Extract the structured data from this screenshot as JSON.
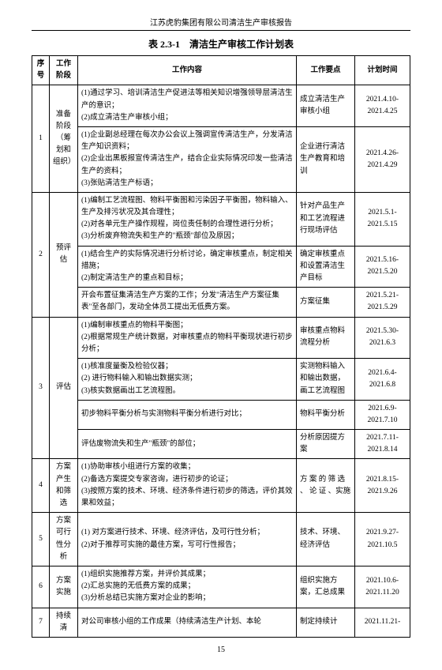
{
  "doc_header": "江苏虎豹集团有限公司清洁生产审核报告",
  "table_title": "表 2.3-1　清洁生产审核工作计划表",
  "page_number": "15",
  "columns": {
    "seq": "序号",
    "phase": "工作阶段",
    "content": "工作内容",
    "points": "工作要点",
    "time": "计划时间"
  },
  "rows": [
    {
      "seq": "1",
      "phase": "准备阶段（筹划和组织）",
      "groups": [
        {
          "content": "(1)通过学习、培训清洁生产促进法等相关知识增强领导层清洁生产的意识；\n(2)成立清洁生产审核小组；",
          "points": "成立清洁生产审核小组",
          "time": "2021.4.10-2021.4.25"
        },
        {
          "content": "(1)企业副总经理在每次办公会议上强调宣传清洁生产，分发清洁生产知识资料；\n(2)企业出黑板报宣传清洁生产，结合企业实际情况印发一些清洁生产的资料；\n(3)张贴清洁生产标语；",
          "points": "企业进行清洁生产教育和培训",
          "time": "2021.4.26-2021.4.29"
        }
      ]
    },
    {
      "seq": "2",
      "phase": "预评估",
      "groups": [
        {
          "content": "(1)编制工艺流程图、物料平衡图和污染因子平衡图，物料输入、生产及排污状况及其合理性；\n(2)对各单元生产操作规程，岗位责任制的合理性进行分析；\n(3)分析废弃物流失和生产的\"瓶颈\"部位及原因；",
          "points": "针对产品生产和工艺流程进行现场评估",
          "time": "2021.5.1-2021.5.15"
        },
        {
          "content": "(1)结合生产的实际情况进行分析讨论，确定审核重点，制定相关措施；\n(2)制定清洁生产的重点和目标；",
          "points": "确定审核重点和设置清洁生产目标",
          "time": "2021.5.16-2021.5.20"
        },
        {
          "content": "开会布置征集清洁生产方案的工作；分发\"清洁生产方案征集表\"至各部门，发动全体员工提出无低费方案。",
          "points": "方案征集",
          "time": "2021.5.21-2021.5.29"
        }
      ]
    },
    {
      "seq": "3",
      "phase": "评估",
      "groups": [
        {
          "content": "(1)编制审核重点的物料平衡图；\n(2)根据常规生产统计数据，对审核重点的物料平衡现状进行初步分析；",
          "points": "审核重点物料流程分析",
          "time": "2021.5.30-2021.6.3"
        },
        {
          "content": "(1)核准度量衡及检验仪器；\n(2) 进行物料输入和输出数据实测；\n(3)核实数据画出工艺流程图。",
          "points": "实测物料输入和输出数据，画工艺流程图",
          "time": "2021.6.4-2021.6.8"
        },
        {
          "content": "初步物料平衡分析与实测物料平衡分析进行对比；",
          "points": "物料平衡分析",
          "time": "2021.6.9-2021.7.10"
        },
        {
          "content": "评估废物流失和生产\"瓶颈\"的部位；",
          "points": "分析原因提方案",
          "time": "2021.7.11-2021.8.14"
        }
      ]
    },
    {
      "seq": "4",
      "phase": "方案产生和筛选",
      "groups": [
        {
          "content": "(1)协助审核小组进行方案的收集；\n(2)备选方案提交专家咨询，进行初步的论证；\n(3)按照方案的技术、环境、经济条件进行初步的筛选，评价其效果和效益；",
          "points": "方 案 的 筛 选 、 论 证 、实施",
          "time": "2021.8.15-2021.9.26"
        }
      ]
    },
    {
      "seq": "5",
      "phase": "方案可行性分析",
      "groups": [
        {
          "content": "(1) 对方案进行技术、环境、经济评估，及可行性分析；\n(2)对于推荐可实施的最佳方案，写可行性报告；",
          "points": "技术、环境、经济评估",
          "time": "2021.9.27-2021.10.5"
        }
      ]
    },
    {
      "seq": "6",
      "phase": "方案实施",
      "groups": [
        {
          "content": "(1)组织实施推荐方案，并评价其成果；\n(2)汇总实施的无低费方案的成果；\n(3)分析总结已实施方案对企业的影响；",
          "points": "组织实施方案，汇总成果",
          "time": "2021.10.6-2021.11.20"
        }
      ]
    },
    {
      "seq": "7",
      "phase": "持续清",
      "groups": [
        {
          "content": "对公司审核小组的工作成果（持续清洁生产计划、本轮",
          "points": "制定持续计",
          "time": "2021.11.21-"
        }
      ]
    }
  ]
}
